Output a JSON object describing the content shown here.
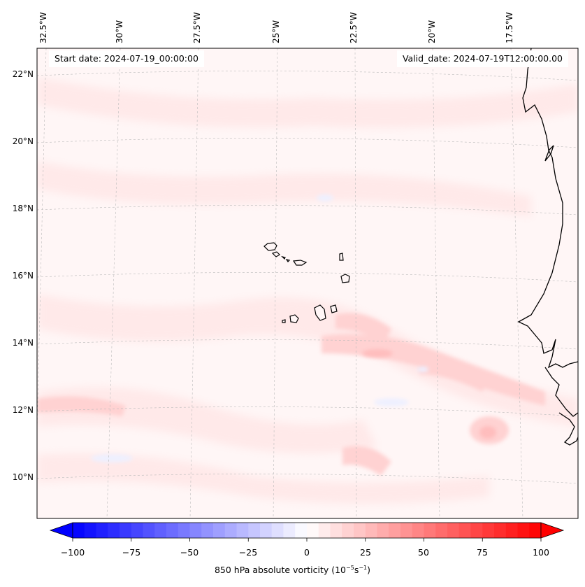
{
  "header": {
    "start_date": "Start date: 2024-07-19_00:00:00",
    "valid_date": "Valid_date: 2024-07-19T12:00:00.00"
  },
  "map": {
    "longitude_labels": [
      "32.5°W",
      "30°W",
      "27.5°W",
      "25°W",
      "22.5°W",
      "20°W",
      "17.5°W"
    ],
    "latitude_labels": [
      "22°N",
      "20°N",
      "18°N",
      "16°N",
      "14°N",
      "12°N",
      "10°N"
    ],
    "extent": {
      "lon_min": -33.0,
      "lon_max": -15.7,
      "lat_min": 8.9,
      "lat_max": 22.8
    },
    "field": "850 hPa absolute vorticity",
    "gridlines": "dashed grey",
    "colors": {
      "coastline": "#000000",
      "gridline": "#bbbbbb",
      "positive": "#ff0000",
      "negative": "#0000ff"
    }
  },
  "colorbar": {
    "ticks": [
      "−100",
      "−75",
      "−50",
      "−25",
      "0",
      "25",
      "50",
      "75",
      "100"
    ],
    "range": [
      -100,
      100
    ],
    "extend": "both",
    "colormap": "bwr",
    "label_text": "850 hPa absolute vorticity (10",
    "label_exp1": "−5",
    "label_mid": "s",
    "label_exp2": "−1",
    "label_end": ")"
  }
}
